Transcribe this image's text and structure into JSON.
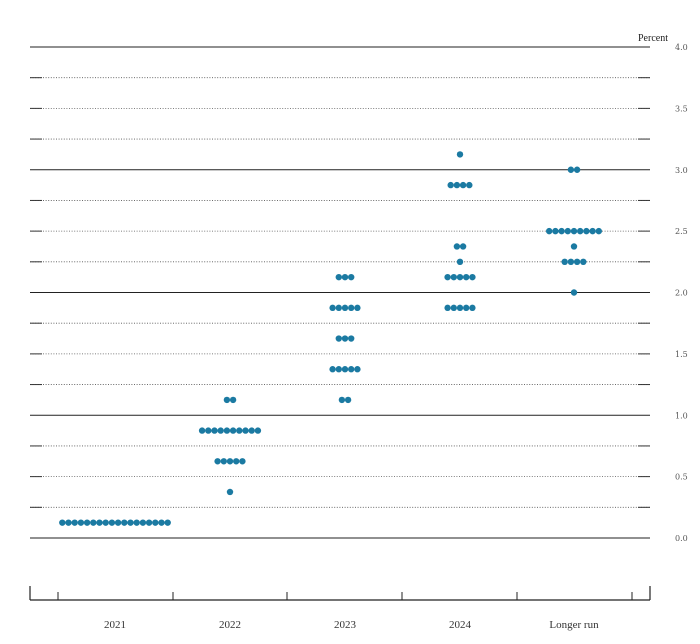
{
  "chart_data": {
    "type": "scatter",
    "unit_label": "Percent",
    "ylim": [
      0,
      4.0
    ],
    "y_ticks": [
      "4.0",
      "3.5",
      "3.0",
      "2.5",
      "2.0",
      "1.5",
      "1.0",
      "0.5",
      "0.0"
    ],
    "solid_gridlines": [
      0,
      1,
      2,
      3,
      4
    ],
    "dotted_gridlines": [
      0.25,
      0.5,
      0.75,
      1.25,
      1.5,
      1.75,
      2.25,
      2.5,
      2.75,
      3.25,
      3.5,
      3.75
    ],
    "grid": true,
    "point_color": "#1b7aa2",
    "categories": [
      "2021",
      "2022",
      "2023",
      "2024",
      "Longer run"
    ],
    "dots": [
      [
        {
          "rate": 0.125,
          "count": 18
        }
      ],
      [
        {
          "rate": 1.125,
          "count": 2
        },
        {
          "rate": 0.875,
          "count": 10
        },
        {
          "rate": 0.625,
          "count": 5
        },
        {
          "rate": 0.375,
          "count": 1
        }
      ],
      [
        {
          "rate": 2.125,
          "count": 3
        },
        {
          "rate": 1.875,
          "count": 5
        },
        {
          "rate": 1.625,
          "count": 3
        },
        {
          "rate": 1.375,
          "count": 5
        },
        {
          "rate": 1.125,
          "count": 2
        }
      ],
      [
        {
          "rate": 3.125,
          "count": 1
        },
        {
          "rate": 2.875,
          "count": 4
        },
        {
          "rate": 2.375,
          "count": 2
        },
        {
          "rate": 2.25,
          "count": 1
        },
        {
          "rate": 2.125,
          "count": 5
        },
        {
          "rate": 1.875,
          "count": 5
        }
      ],
      [
        {
          "rate": 3.0,
          "count": 2
        },
        {
          "rate": 2.5,
          "count": 9
        },
        {
          "rate": 2.375,
          "count": 1
        },
        {
          "rate": 2.25,
          "count": 4
        },
        {
          "rate": 2.0,
          "count": 1
        }
      ]
    ]
  }
}
